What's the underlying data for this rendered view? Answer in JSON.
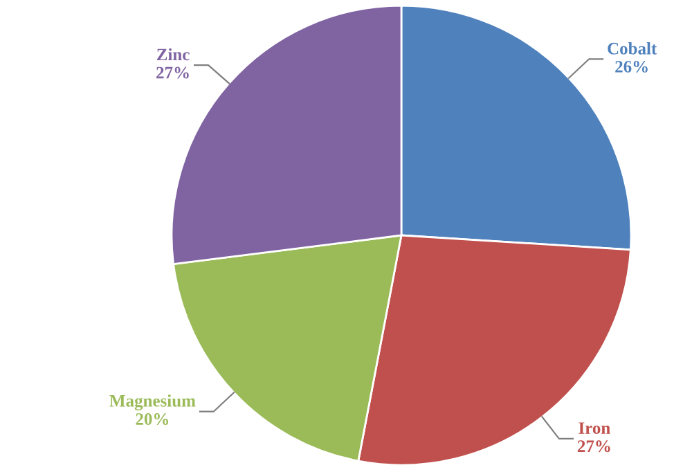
{
  "chart_data": {
    "type": "pie",
    "categories": [
      "Cobalt",
      "Iron",
      "Magnesium",
      "Zinc"
    ],
    "values": [
      26,
      27,
      20,
      27
    ],
    "value_labels": [
      "26%",
      "27%",
      "20%",
      "27%"
    ],
    "colors": [
      "#4f81bd",
      "#c0504d",
      "#9bbb59",
      "#8064a2"
    ]
  }
}
